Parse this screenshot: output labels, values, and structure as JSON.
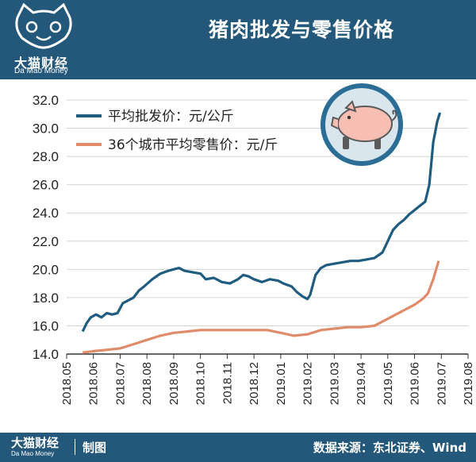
{
  "header": {
    "title": "猪肉批发与零售价格",
    "brand_cn": "大猫财经",
    "brand_en": "Da Mao Money"
  },
  "footer": {
    "brand_cn": "大猫财经",
    "brand_en": "Da Mao Money",
    "made_by": "制图",
    "source": "数据来源：东北证券、Wind"
  },
  "colors": {
    "header_bg": "#24587a",
    "wholesale": "#1f5c80",
    "retail": "#e08c6b",
    "pig_badge_bg": "#2b6d94",
    "pig_body": "#f7bfb4"
  },
  "icons": {
    "logo": "cat-face-icon",
    "pig": "pig-icon"
  },
  "chart_data": {
    "type": "line",
    "title": "",
    "xlabel": "",
    "ylabel": "",
    "ylim": [
      14.0,
      32.0
    ],
    "y_ticks": [
      "14.0",
      "16.0",
      "18.0",
      "20.0",
      "22.0",
      "24.0",
      "26.0",
      "28.0",
      "30.0",
      "32.0"
    ],
    "categories": [
      "2018.05",
      "2018.06",
      "2018.07",
      "2018.08",
      "2018.09",
      "2018.10",
      "2018.11",
      "2018.12",
      "2019.01",
      "2019.02",
      "2019.03",
      "2019.04",
      "2019.05",
      "2019.06",
      "2019.07",
      "2019.08"
    ],
    "grid": "horizontal",
    "legend": "top-left",
    "series": [
      {
        "name": "平均批发价：元/公斤",
        "color": "#1f5c80",
        "points": [
          [
            0.6,
            15.6
          ],
          [
            0.75,
            16.2
          ],
          [
            0.9,
            16.6
          ],
          [
            1.1,
            16.8
          ],
          [
            1.3,
            16.6
          ],
          [
            1.5,
            16.9
          ],
          [
            1.7,
            16.8
          ],
          [
            1.9,
            16.9
          ],
          [
            2.1,
            17.6
          ],
          [
            2.3,
            17.8
          ],
          [
            2.5,
            18.0
          ],
          [
            2.7,
            18.5
          ],
          [
            2.9,
            18.8
          ],
          [
            3.2,
            19.3
          ],
          [
            3.5,
            19.7
          ],
          [
            3.8,
            19.9
          ],
          [
            4.0,
            20.0
          ],
          [
            4.2,
            20.1
          ],
          [
            4.4,
            19.9
          ],
          [
            4.7,
            19.8
          ],
          [
            5.0,
            19.7
          ],
          [
            5.2,
            19.3
          ],
          [
            5.5,
            19.4
          ],
          [
            5.8,
            19.1
          ],
          [
            6.1,
            19.0
          ],
          [
            6.4,
            19.3
          ],
          [
            6.6,
            19.6
          ],
          [
            6.8,
            19.5
          ],
          [
            7.0,
            19.3
          ],
          [
            7.3,
            19.1
          ],
          [
            7.6,
            19.3
          ],
          [
            7.9,
            19.2
          ],
          [
            8.1,
            19.0
          ],
          [
            8.4,
            18.8
          ],
          [
            8.6,
            18.4
          ],
          [
            8.8,
            18.1
          ],
          [
            9.0,
            17.9
          ],
          [
            9.1,
            18.2
          ],
          [
            9.3,
            19.6
          ],
          [
            9.5,
            20.1
          ],
          [
            9.7,
            20.3
          ],
          [
            10.0,
            20.4
          ],
          [
            10.3,
            20.5
          ],
          [
            10.6,
            20.6
          ],
          [
            10.9,
            20.6
          ],
          [
            11.2,
            20.7
          ],
          [
            11.5,
            20.8
          ],
          [
            11.8,
            21.2
          ],
          [
            12.0,
            22.0
          ],
          [
            12.2,
            22.8
          ],
          [
            12.4,
            23.2
          ],
          [
            12.6,
            23.5
          ],
          [
            12.8,
            23.9
          ],
          [
            13.0,
            24.2
          ],
          [
            13.2,
            24.5
          ],
          [
            13.4,
            24.8
          ],
          [
            13.55,
            26.0
          ],
          [
            13.7,
            29.0
          ],
          [
            13.85,
            30.5
          ],
          [
            13.95,
            31.1
          ]
        ]
      },
      {
        "name": "36个城市平均零售价：元/斤",
        "color": "#e08c6b",
        "points": [
          [
            0.6,
            14.1
          ],
          [
            1.0,
            14.2
          ],
          [
            1.5,
            14.3
          ],
          [
            2.0,
            14.4
          ],
          [
            2.5,
            14.7
          ],
          [
            3.0,
            15.0
          ],
          [
            3.5,
            15.3
          ],
          [
            4.0,
            15.5
          ],
          [
            4.5,
            15.6
          ],
          [
            5.0,
            15.7
          ],
          [
            5.5,
            15.7
          ],
          [
            6.0,
            15.7
          ],
          [
            6.5,
            15.7
          ],
          [
            7.0,
            15.7
          ],
          [
            7.5,
            15.7
          ],
          [
            8.0,
            15.5
          ],
          [
            8.5,
            15.3
          ],
          [
            9.0,
            15.4
          ],
          [
            9.5,
            15.7
          ],
          [
            10.0,
            15.8
          ],
          [
            10.5,
            15.9
          ],
          [
            11.0,
            15.9
          ],
          [
            11.5,
            16.0
          ],
          [
            12.0,
            16.5
          ],
          [
            12.5,
            17.0
          ],
          [
            13.0,
            17.5
          ],
          [
            13.3,
            17.9
          ],
          [
            13.5,
            18.3
          ],
          [
            13.7,
            19.3
          ],
          [
            13.9,
            20.6
          ]
        ]
      }
    ]
  }
}
